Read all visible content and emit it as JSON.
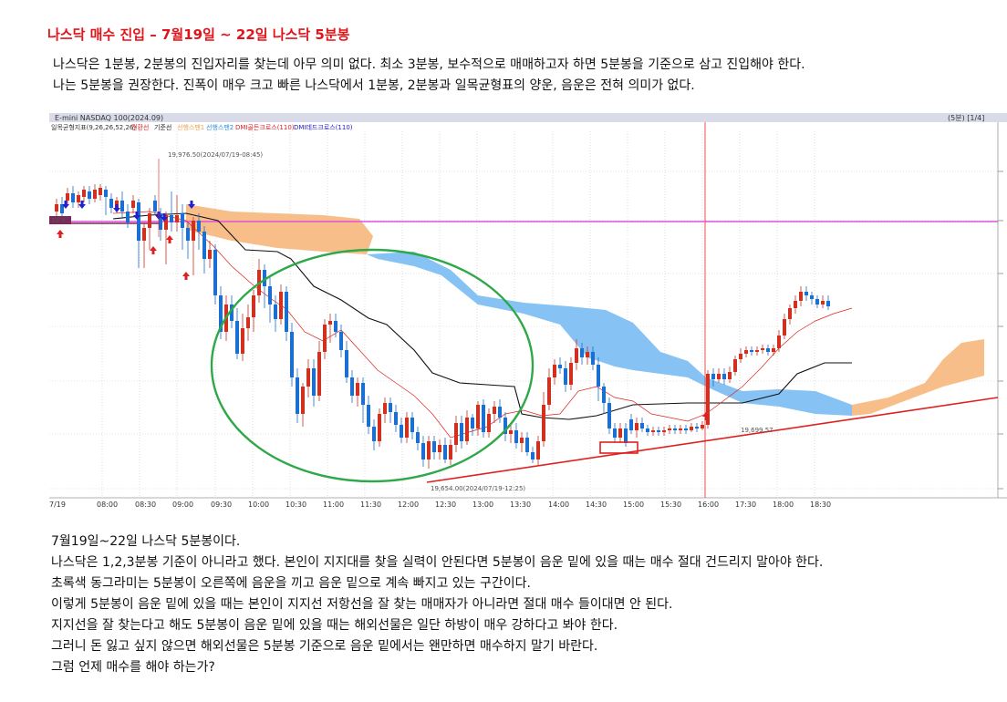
{
  "title": "나스닥 매수 진입 – 7월19일 ~ 22일 나스닥 5분봉",
  "intro": [
    "나스닥은 1분봉, 2분봉의 진입자리를 찾는데 아무 의미 없다. 최소 3분봉, 보수적으로 매매하고자 하면 5분봉을 기준으로 삼고 진입해야 한다.",
    "나는 5분봉을 권장한다.  진폭이 매우 크고 빠른 나스닥에서 1분봉, 2분봉과 일목균형표의 양운, 음운은 전혀 의미가 없다."
  ],
  "chart": {
    "header_title": "E-mini NASDAQ 100(2024.09)",
    "header_right": "(5분) [1/4]",
    "legend": [
      {
        "text": "일목균형지표(9,26,26,52,26)",
        "color": "#333333"
      },
      {
        "text": "전환선",
        "color": "#e02020"
      },
      {
        "text": "기준선",
        "color": "#222222"
      },
      {
        "text": "선행스팬1",
        "color": "#f0a050"
      },
      {
        "text": "선행스팬2",
        "color": "#3090e0"
      },
      {
        "text": "DMI골든크로스(110)",
        "color": "#e02020"
      },
      {
        "text": "DMI데드크로스(110)",
        "color": "#2020d0"
      }
    ],
    "annotations": {
      "high": "19,976.50(2024/07/19-08:45)",
      "low": "19,654.00(2024/07/19-12:25)",
      "level": "19,699.57",
      "price_box": "19,9..."
    },
    "time_labels": [
      "7/19",
      "08:00",
      "08:30",
      "09:00",
      "09:30",
      "10:00",
      "10:30",
      "11:00",
      "11:30",
      "12:00",
      "12:30",
      "13:00",
      "13:30",
      "14:00",
      "14:30",
      "15:00",
      "15:30",
      "16:00",
      "17:30",
      "18:00",
      "18:30"
    ],
    "colors": {
      "up": "#d03020",
      "down": "#1a6fd0",
      "conversion": "#e02020",
      "base": "#111111",
      "cloud_bull": "#f6b77c",
      "cloud_bear": "#7fbff2",
      "magenta_line": "#e050e0",
      "trend_line": "#e02020",
      "circle": "#2fa84a"
    }
  },
  "body": [
    "7월19일~22일 나스닥 5분봉이다.",
    "나스닥은 1,2,3분봉 기준이 아니라고 했다. 본인이 지지대를 찾을 실력이 안된다면 5분봉이 음운 밑에 있을 때는 매수 절대 건드리지 말아야 한다.",
    "초록색 동그라미는 5분봉이 오른쪽에 음운을 끼고 음운 밑으로 계속 빠지고 있는 구간이다.",
    "이렇게 5분봉이 음운 밑에 있을 때는 본인이 지지선 저항선을 잘 찾는 매매자가 아니라면 절대 매수 들이대면 안 된다.",
    "지지선을 잘 찾는다고 해도 5분봉이 음운 밑에 있을 때는 해외선물은 일단 하방이 매우 강하다고 봐야 한다.",
    "그러니 돈 잃고 싶지 않으면 해외선물은 5분봉 기준으로 음운 밑에서는 왠만하면 매수하지 말기 바란다.",
    "그럼 언제 매수를 해야 하는가?"
  ]
}
